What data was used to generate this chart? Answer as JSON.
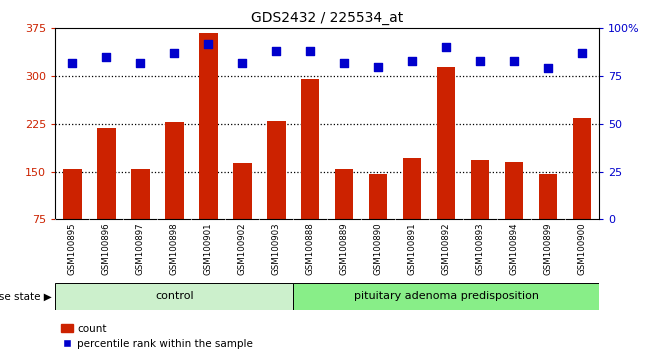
{
  "title": "GDS2432 / 225534_at",
  "samples": [
    "GSM100895",
    "GSM100896",
    "GSM100897",
    "GSM100898",
    "GSM100901",
    "GSM100902",
    "GSM100903",
    "GSM100888",
    "GSM100889",
    "GSM100890",
    "GSM100891",
    "GSM100892",
    "GSM100893",
    "GSM100894",
    "GSM100899",
    "GSM100900"
  ],
  "counts": [
    155,
    218,
    155,
    228,
    367,
    163,
    230,
    295,
    155,
    147,
    172,
    315,
    168,
    165,
    147,
    235
  ],
  "percentiles": [
    82,
    85,
    82,
    87,
    92,
    82,
    88,
    88,
    82,
    80,
    83,
    90,
    83,
    83,
    79,
    87
  ],
  "control_count": 7,
  "disease_label": "pituitary adenoma predisposition",
  "control_label": "control",
  "ylim_left": [
    75,
    375
  ],
  "ylim_right": [
    0,
    100
  ],
  "yticks_left": [
    75,
    150,
    225,
    300,
    375
  ],
  "yticks_right": [
    0,
    25,
    50,
    75,
    100
  ],
  "bar_color": "#cc2200",
  "scatter_color": "#0000cc",
  "control_bg": "#ccf0cc",
  "disease_bg": "#88ee88",
  "legend_bar_label": "count",
  "legend_scatter_label": "percentile rank within the sample",
  "dotted_lines": [
    150,
    225,
    300
  ],
  "xtick_bg": "#c8c8c8"
}
